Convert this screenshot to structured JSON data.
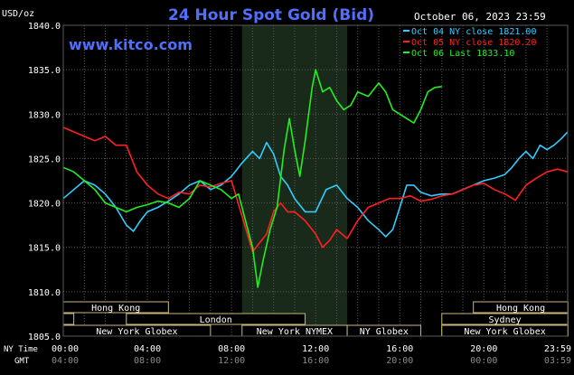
{
  "title": "24 Hour Spot Gold (Bid)",
  "date_text": "October 06, 2023 23:59",
  "brand": "www.kitco.com",
  "unit_label": "USD/oz",
  "row_labels": {
    "ny_time": "NY Time",
    "gmt": "GMT"
  },
  "colors": {
    "background": "#000000",
    "plot_background": "#000000",
    "shaded_session": "#1a2a1a",
    "grid": "#5a5a5a",
    "axis_text": "#ffffff",
    "title": "#4f6fff",
    "brand": "#4f6fff",
    "band_fill": "#000000",
    "band_border": "#c8b878",
    "band_text": "#ffffff"
  },
  "sessions": [
    {
      "label": "Hong Kong",
      "row": 0,
      "start": "00:00",
      "end": "05:00"
    },
    {
      "label": "",
      "row": 1,
      "start": "00:00",
      "end": "00:30"
    },
    {
      "label": "London",
      "row": 1,
      "start": "03:00",
      "end": "11:30"
    },
    {
      "label": "New York Globex",
      "row": 2,
      "start": "00:00",
      "end": "07:00"
    },
    {
      "label": "New York NYMEX",
      "row": 2,
      "start": "08:30",
      "end": "13:30"
    },
    {
      "label": "NY Globex",
      "row": 2,
      "start": "13:30",
      "end": "17:00"
    },
    {
      "label": "",
      "row": 2,
      "start": "18:00",
      "end": "24:00"
    },
    {
      "label": "Hong Kong",
      "row": 0,
      "start": "19:30",
      "end": "24:00"
    },
    {
      "label": "Sydney",
      "row": 1,
      "start": "18:00",
      "end": "24:00"
    },
    {
      "label": "New York Globex",
      "row": 2,
      "start": "18:00",
      "end": "24:00"
    }
  ],
  "chart_data": {
    "type": "line",
    "title": "24 Hour Spot Gold (Bid)",
    "xlabel": "",
    "ylabel": "USD/oz",
    "ylim": [
      1805,
      1840
    ],
    "xlim": [
      "00:00",
      "23:59"
    ],
    "shaded_range": [
      "08:30",
      "13:30"
    ],
    "y_ticks": [
      "1805.0",
      "1810.0",
      "1815.0",
      "1820.0",
      "1825.0",
      "1830.0",
      "1835.0",
      "1840.0"
    ],
    "x_ticks_ny": [
      "00:00",
      "04:00",
      "08:00",
      "12:00",
      "16:00",
      "20:00",
      "23:59"
    ],
    "x_ticks_gmt": [
      "04:00",
      "08:00",
      "12:00",
      "16:00",
      "20:00",
      "00:00",
      "03:59"
    ],
    "grid": true,
    "legend_position": "top-right",
    "series": [
      {
        "name": "Oct 04 NY close 1821.00",
        "color": "#33ccff",
        "points": [
          [
            "00:00",
            1820.5
          ],
          [
            "00:30",
            1821.5
          ],
          [
            "01:00",
            1822.5
          ],
          [
            "01:30",
            1822.0
          ],
          [
            "02:00",
            1821.0
          ],
          [
            "02:30",
            1819.5
          ],
          [
            "03:00",
            1817.5
          ],
          [
            "03:20",
            1816.8
          ],
          [
            "03:40",
            1818.0
          ],
          [
            "04:00",
            1819.0
          ],
          [
            "04:30",
            1819.5
          ],
          [
            "05:00",
            1820.2
          ],
          [
            "05:30",
            1821.0
          ],
          [
            "06:00",
            1822.0
          ],
          [
            "06:30",
            1822.5
          ],
          [
            "07:00",
            1821.5
          ],
          [
            "07:30",
            1822.0
          ],
          [
            "08:00",
            1823.0
          ],
          [
            "08:30",
            1824.5
          ],
          [
            "09:00",
            1825.8
          ],
          [
            "09:20",
            1825.0
          ],
          [
            "09:40",
            1826.8
          ],
          [
            "10:00",
            1825.5
          ],
          [
            "10:20",
            1823.0
          ],
          [
            "10:40",
            1822.0
          ],
          [
            "11:00",
            1820.5
          ],
          [
            "11:30",
            1819.0
          ],
          [
            "12:00",
            1819.0
          ],
          [
            "12:30",
            1821.5
          ],
          [
            "13:00",
            1822.0
          ],
          [
            "13:30",
            1820.5
          ],
          [
            "14:00",
            1819.5
          ],
          [
            "14:30",
            1818.0
          ],
          [
            "15:00",
            1817.0
          ],
          [
            "15:20",
            1816.2
          ],
          [
            "15:40",
            1817.0
          ],
          [
            "16:00",
            1819.5
          ],
          [
            "16:20",
            1822.0
          ],
          [
            "16:40",
            1822.0
          ],
          [
            "17:00",
            1821.2
          ],
          [
            "17:30",
            1820.8
          ],
          [
            "18:00",
            1821.0
          ],
          [
            "18:30",
            1821.0
          ],
          [
            "19:00",
            1821.5
          ],
          [
            "19:30",
            1822.0
          ],
          [
            "20:00",
            1822.5
          ],
          [
            "20:30",
            1822.8
          ],
          [
            "21:00",
            1823.2
          ],
          [
            "21:20",
            1824.0
          ],
          [
            "21:40",
            1825.0
          ],
          [
            "22:00",
            1825.8
          ],
          [
            "22:20",
            1825.0
          ],
          [
            "22:40",
            1826.5
          ],
          [
            "23:00",
            1826.0
          ],
          [
            "23:20",
            1826.5
          ],
          [
            "23:40",
            1827.2
          ],
          [
            "23:59",
            1828.0
          ]
        ]
      },
      {
        "name": "Oct 05 NY close 1820.20",
        "color": "#ff2020",
        "points": [
          [
            "00:00",
            1828.5
          ],
          [
            "00:30",
            1828.0
          ],
          [
            "01:00",
            1827.5
          ],
          [
            "01:30",
            1827.0
          ],
          [
            "02:00",
            1827.5
          ],
          [
            "02:30",
            1826.5
          ],
          [
            "03:00",
            1826.5
          ],
          [
            "03:30",
            1823.5
          ],
          [
            "04:00",
            1822.0
          ],
          [
            "04:30",
            1821.0
          ],
          [
            "05:00",
            1820.5
          ],
          [
            "05:30",
            1821.2
          ],
          [
            "06:00",
            1821.0
          ],
          [
            "06:30",
            1822.0
          ],
          [
            "07:00",
            1821.8
          ],
          [
            "07:30",
            1822.2
          ],
          [
            "08:00",
            1822.5
          ],
          [
            "08:30",
            1818.5
          ],
          [
            "09:00",
            1814.5
          ],
          [
            "09:20",
            1815.5
          ],
          [
            "09:40",
            1816.5
          ],
          [
            "10:00",
            1819.0
          ],
          [
            "10:20",
            1820.0
          ],
          [
            "10:40",
            1819.0
          ],
          [
            "11:00",
            1819.0
          ],
          [
            "11:30",
            1818.0
          ],
          [
            "12:00",
            1816.5
          ],
          [
            "12:20",
            1815.0
          ],
          [
            "12:40",
            1815.8
          ],
          [
            "13:00",
            1817.0
          ],
          [
            "13:30",
            1816.0
          ],
          [
            "14:00",
            1818.0
          ],
          [
            "14:30",
            1819.5
          ],
          [
            "15:00",
            1820.0
          ],
          [
            "15:30",
            1820.5
          ],
          [
            "16:00",
            1820.5
          ],
          [
            "16:30",
            1820.8
          ],
          [
            "17:00",
            1820.2
          ],
          [
            "17:30",
            1820.4
          ],
          [
            "18:00",
            1820.8
          ],
          [
            "18:30",
            1821.0
          ],
          [
            "19:00",
            1821.5
          ],
          [
            "19:30",
            1822.0
          ],
          [
            "20:00",
            1822.2
          ],
          [
            "20:30",
            1821.5
          ],
          [
            "21:00",
            1821.0
          ],
          [
            "21:30",
            1820.3
          ],
          [
            "22:00",
            1822.0
          ],
          [
            "22:30",
            1822.8
          ],
          [
            "23:00",
            1823.5
          ],
          [
            "23:30",
            1823.8
          ],
          [
            "23:59",
            1823.5
          ]
        ]
      },
      {
        "name": "Oct 06 Last 1833.10",
        "color": "#22ee22",
        "points": [
          [
            "00:00",
            1824.0
          ],
          [
            "00:30",
            1823.5
          ],
          [
            "01:00",
            1822.5
          ],
          [
            "01:30",
            1821.5
          ],
          [
            "02:00",
            1820.0
          ],
          [
            "02:30",
            1819.5
          ],
          [
            "03:00",
            1819.0
          ],
          [
            "03:30",
            1819.5
          ],
          [
            "04:00",
            1819.8
          ],
          [
            "04:30",
            1820.2
          ],
          [
            "05:00",
            1820.0
          ],
          [
            "05:30",
            1819.5
          ],
          [
            "06:00",
            1820.5
          ],
          [
            "06:30",
            1822.5
          ],
          [
            "07:00",
            1822.0
          ],
          [
            "07:30",
            1821.5
          ],
          [
            "08:00",
            1820.5
          ],
          [
            "08:20",
            1821.0
          ],
          [
            "08:40",
            1818.0
          ],
          [
            "09:00",
            1815.0
          ],
          [
            "09:15",
            1810.5
          ],
          [
            "09:30",
            1813.5
          ],
          [
            "09:50",
            1817.0
          ],
          [
            "10:10",
            1819.5
          ],
          [
            "10:30",
            1826.0
          ],
          [
            "10:45",
            1829.5
          ],
          [
            "11:00",
            1826.0
          ],
          [
            "11:15",
            1823.0
          ],
          [
            "11:30",
            1827.0
          ],
          [
            "11:50",
            1833.0
          ],
          [
            "12:00",
            1835.0
          ],
          [
            "12:20",
            1832.5
          ],
          [
            "12:40",
            1833.0
          ],
          [
            "13:00",
            1831.5
          ],
          [
            "13:20",
            1830.5
          ],
          [
            "13:40",
            1831.0
          ],
          [
            "14:00",
            1832.5
          ],
          [
            "14:30",
            1832.0
          ],
          [
            "15:00",
            1833.5
          ],
          [
            "15:20",
            1832.5
          ],
          [
            "15:40",
            1830.5
          ],
          [
            "16:00",
            1830.0
          ],
          [
            "16:20",
            1829.5
          ],
          [
            "16:40",
            1829.0
          ],
          [
            "17:00",
            1830.5
          ],
          [
            "17:20",
            1832.5
          ],
          [
            "17:40",
            1833.0
          ],
          [
            "18:00",
            1833.1
          ]
        ]
      }
    ]
  }
}
